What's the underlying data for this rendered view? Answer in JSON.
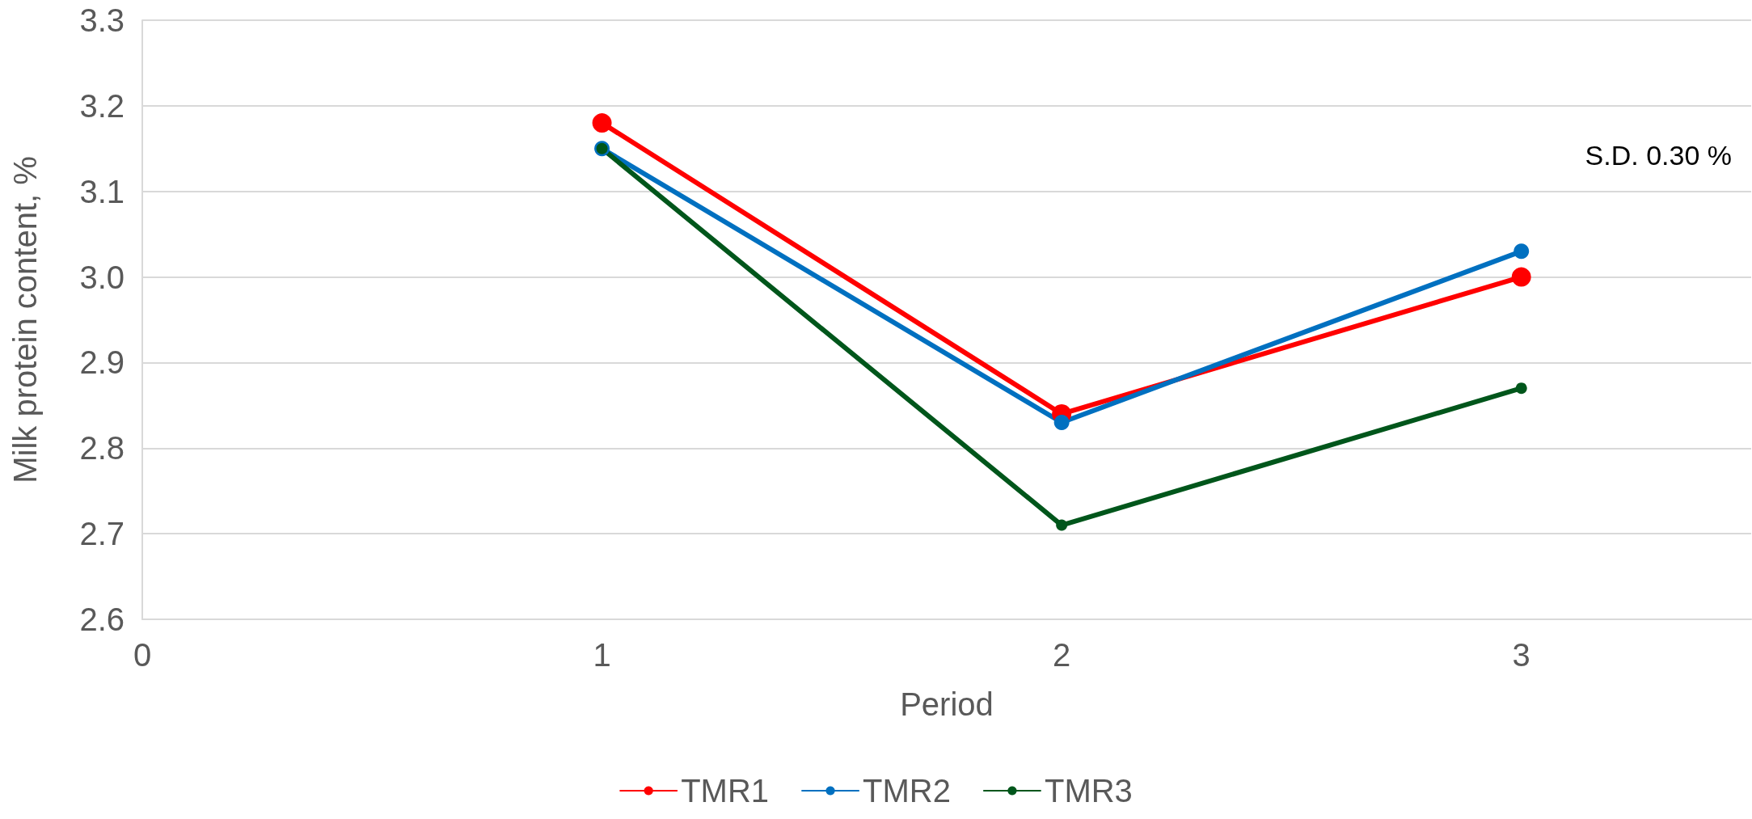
{
  "chart_data": {
    "type": "line",
    "xlabel": "Period",
    "ylabel": "Milk protein content, %",
    "x": [
      1,
      2,
      3
    ],
    "series": [
      {
        "name": "TMR1",
        "color": "#ff0000",
        "values": [
          3.18,
          2.84,
          3.0
        ]
      },
      {
        "name": "TMR2",
        "color": "#0070c0",
        "values": [
          3.15,
          2.83,
          3.03
        ]
      },
      {
        "name": "TMR3",
        "color": "#00561b",
        "values": [
          3.15,
          2.71,
          2.87
        ]
      }
    ],
    "xlim": [
      0,
      3.5
    ],
    "xticks": [
      0,
      1,
      2,
      3
    ],
    "ylim": [
      2.6,
      3.3
    ],
    "yticks": [
      2.6,
      2.7,
      2.8,
      2.9,
      {
        "value": 3,
        "label": "3.0"
      },
      3.1,
      3.2,
      3.3
    ],
    "annotations": [
      "S.D. 0.30 %"
    ],
    "grid": "y",
    "legend": "bottom",
    "marker": "circle",
    "line_style": "solid"
  }
}
